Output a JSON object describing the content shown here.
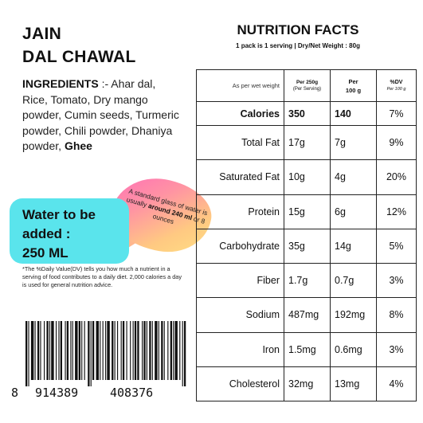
{
  "product": {
    "title_line1": "JAIN",
    "title_line2": "DAL CHAWAL"
  },
  "ingredients": {
    "heading": "INGREDIENTS",
    "separator": " :- ",
    "text": "Ahar dal, Rice, Tomato, Dry mango powder, Cumin seeds, Turmeric powder, Chili powder, Dhaniya powder, ",
    "last_bold": "Ghee"
  },
  "water": {
    "line1": "Water to be",
    "line2": "added :",
    "line3": "250 ML"
  },
  "bubble": {
    "part1": "A standard glass of water is usually ",
    "bold1": "around 240 ml",
    "part2": " or 8 ounces"
  },
  "footnote": "*The %Daily Value(DV) tells you how much a nutrient in a serving of food contributes to a daily diet. 2,000 calories a day is used for general nutrition advice.",
  "barcode": {
    "digit_first": "8",
    "group_left": "914389",
    "group_right": "408376"
  },
  "nutrition": {
    "title": "NUTRITION FACTS",
    "subtitle": "1 pack is 1 serving | Dry/Net Weight : 80g",
    "header": {
      "col0": "As per wet weight",
      "col1_main": "Per 250g",
      "col1_sub": "(Per Serving)",
      "col2_line1": "Per",
      "col2_line2": "100 g",
      "col3_main": "%DV",
      "col3_sub": "Per 100 g"
    },
    "rows": [
      {
        "name": "Calories",
        "per_serving": "350",
        "per_100g": "140",
        "dv": "7%"
      },
      {
        "name": "Total Fat",
        "per_serving": "17g",
        "per_100g": "7g",
        "dv": "9%"
      },
      {
        "name": "Saturated Fat",
        "per_serving": "10g",
        "per_100g": "4g",
        "dv": "20%"
      },
      {
        "name": "Protein",
        "per_serving": "15g",
        "per_100g": "6g",
        "dv": "12%"
      },
      {
        "name": "Carbohydrate",
        "per_serving": "35g",
        "per_100g": "14g",
        "dv": "5%"
      },
      {
        "name": "Fiber",
        "per_serving": "1.7g",
        "per_100g": "0.7g",
        "dv": "3%"
      },
      {
        "name": "Sodium",
        "per_serving": "487mg",
        "per_100g": "192mg",
        "dv": "8%"
      },
      {
        "name": "Iron",
        "per_serving": "1.5mg",
        "per_100g": "0.6mg",
        "dv": "3%"
      },
      {
        "name": "Cholesterol",
        "per_serving": "32mg",
        "per_100g": "13mg",
        "dv": "4%"
      }
    ]
  }
}
